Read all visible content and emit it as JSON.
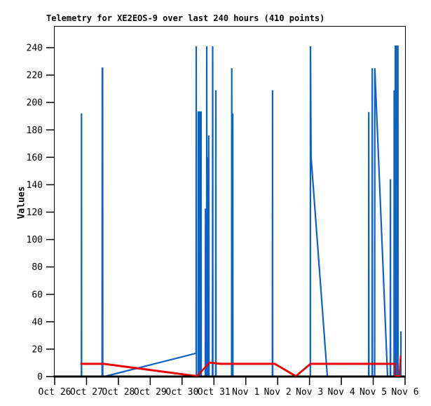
{
  "title": "Telemetry for XE2EOS-9 over last 240 hours (410 points)",
  "colors": {
    "blue_series": "#0e62c6",
    "red_series": "#ee0000",
    "axis": "#000000",
    "background": "#ffffff"
  },
  "chart_data": {
    "type": "line",
    "title": "Telemetry for XE2EOS-9 over last 240 hours (410 points)",
    "xlabel": "",
    "ylabel": "Values",
    "x_unit": "days after Oct 26",
    "xlim": [
      0,
      11
    ],
    "ylim": [
      0,
      255
    ],
    "grid": false,
    "legend_position": "none",
    "x_ticks": [
      {
        "day": 0,
        "label": "Oct 26"
      },
      {
        "day": 1,
        "label": "Oct 27"
      },
      {
        "day": 2,
        "label": "Oct 28"
      },
      {
        "day": 3,
        "label": "Oct 29"
      },
      {
        "day": 4,
        "label": "Oct 30"
      },
      {
        "day": 5,
        "label": "Oct 31"
      },
      {
        "day": 6,
        "label": "Nov 1"
      },
      {
        "day": 7,
        "label": "Nov 2"
      },
      {
        "day": 8,
        "label": "Nov 3"
      },
      {
        "day": 9,
        "label": "Nov 4"
      },
      {
        "day": 10,
        "label": "Nov 5"
      },
      {
        "day": 11,
        "label": "Nov 6"
      }
    ],
    "y_ticks": [
      0,
      20,
      40,
      60,
      80,
      100,
      120,
      140,
      160,
      180,
      200,
      220,
      240
    ],
    "series": [
      {
        "key": "blue_series",
        "color": "#0e62c6",
        "stroke_width": 2.2,
        "points": [
          [
            0.84,
            0
          ],
          [
            0.842,
            192
          ],
          [
            0.845,
            0
          ],
          [
            1.49,
            0
          ],
          [
            1.495,
            225
          ],
          [
            1.505,
            225
          ],
          [
            1.51,
            0
          ],
          [
            1.56,
            0
          ],
          [
            4.44,
            17
          ],
          [
            4.445,
            241
          ],
          [
            4.45,
            0
          ],
          [
            4.51,
            0
          ],
          [
            4.51,
            193
          ],
          [
            4.54,
            193
          ],
          [
            4.54,
            0
          ],
          [
            4.565,
            0
          ],
          [
            4.565,
            193
          ],
          [
            4.595,
            193
          ],
          [
            4.6,
            0
          ],
          [
            4.73,
            0
          ],
          [
            4.735,
            122
          ],
          [
            4.755,
            122
          ],
          [
            4.76,
            0
          ],
          [
            4.77,
            0
          ],
          [
            4.775,
            241
          ],
          [
            4.78,
            0
          ],
          [
            4.8,
            0
          ],
          [
            4.805,
            160
          ],
          [
            4.81,
            0
          ],
          [
            4.83,
            0
          ],
          [
            4.835,
            176
          ],
          [
            4.84,
            122
          ],
          [
            4.845,
            0
          ],
          [
            4.955,
            0
          ],
          [
            4.96,
            241
          ],
          [
            4.965,
            0
          ],
          [
            5.055,
            0
          ],
          [
            5.06,
            209
          ],
          [
            5.065,
            0
          ],
          [
            5.555,
            0
          ],
          [
            5.56,
            225
          ],
          [
            5.565,
            0
          ],
          [
            5.585,
            0
          ],
          [
            5.59,
            192
          ],
          [
            5.595,
            0
          ],
          [
            6.835,
            0
          ],
          [
            6.84,
            209
          ],
          [
            6.845,
            0
          ],
          [
            8.025,
            0
          ],
          [
            8.03,
            241
          ],
          [
            8.05,
            160
          ],
          [
            8.56,
            0
          ],
          [
            9.855,
            0
          ],
          [
            9.86,
            193
          ],
          [
            9.865,
            0
          ],
          [
            9.965,
            0
          ],
          [
            9.97,
            225
          ],
          [
            9.975,
            0
          ],
          [
            10.045,
            0
          ],
          [
            10.05,
            225
          ],
          [
            10.45,
            0
          ],
          [
            10.535,
            0
          ],
          [
            10.54,
            144
          ],
          [
            10.545,
            0
          ],
          [
            10.655,
            0
          ],
          [
            10.66,
            209
          ],
          [
            10.665,
            0
          ],
          [
            10.695,
            0
          ],
          [
            10.695,
            241
          ],
          [
            10.725,
            241
          ],
          [
            10.725,
            0
          ],
          [
            10.75,
            0
          ],
          [
            10.75,
            241
          ],
          [
            10.775,
            241
          ],
          [
            10.78,
            0
          ],
          [
            10.865,
            0
          ],
          [
            10.87,
            33
          ]
        ]
      },
      {
        "key": "red_series",
        "color": "#ee0000",
        "stroke_width": 2,
        "points": [
          [
            0.81,
            9
          ],
          [
            1.54,
            9
          ],
          [
            4.47,
            0
          ],
          [
            4.86,
            10
          ],
          [
            5.2,
            9
          ],
          [
            6.91,
            9
          ],
          [
            7.57,
            0
          ],
          [
            8.03,
            9
          ],
          [
            10.69,
            9
          ],
          [
            10.695,
            0
          ],
          [
            10.82,
            0
          ],
          [
            10.86,
            15
          ]
        ]
      }
    ]
  }
}
